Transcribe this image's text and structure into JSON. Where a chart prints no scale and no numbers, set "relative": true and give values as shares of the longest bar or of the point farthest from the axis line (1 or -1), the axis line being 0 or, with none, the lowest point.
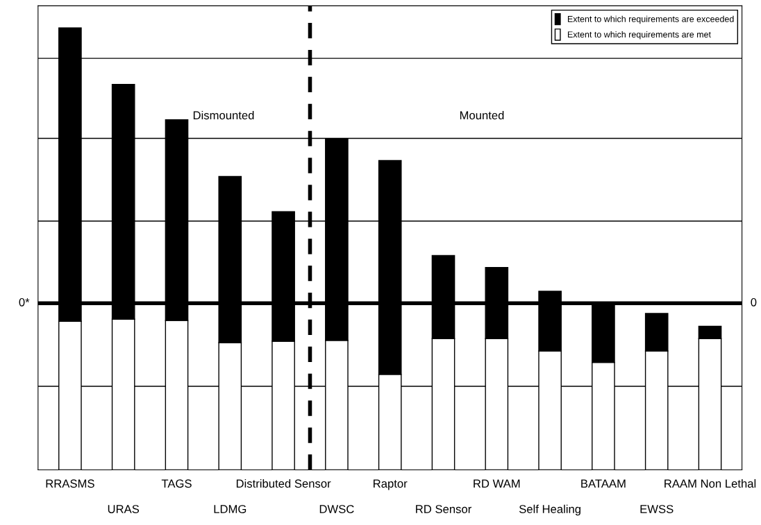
{
  "chart_data": {
    "type": "bar",
    "relative": true,
    "stacked": true,
    "categories": [
      "RRASMS",
      "URAS",
      "TAGS",
      "LDMG",
      "Distributed Sensor",
      "DWSC",
      "Raptor",
      "RD Sensor",
      "RD WAM",
      "Self Healing",
      "BATAAM",
      "EWSS",
      "RAAM Non Lethal"
    ],
    "series": [
      {
        "name": "Extent to which requirements are met",
        "color": "#ffffff",
        "values": [
          0.336,
          0.341,
          0.338,
          0.288,
          0.291,
          0.293,
          0.216,
          0.297,
          0.297,
          0.269,
          0.243,
          0.269,
          0.297
        ]
      },
      {
        "name": "Extent to which requirements are exceeded",
        "color": "#000000",
        "values": [
          0.664,
          0.531,
          0.454,
          0.376,
          0.293,
          0.455,
          0.484,
          0.188,
          0.161,
          0.135,
          0.135,
          0.085,
          0.028
        ]
      }
    ],
    "ref_lines": [
      {
        "axis": "y",
        "value": 0.931,
        "color": "#000000",
        "line_style": "solid"
      },
      {
        "axis": "y",
        "value": 0.75,
        "color": "#000000",
        "line_style": "solid"
      },
      {
        "axis": "y",
        "value": 0.563,
        "color": "#000000",
        "line_style": "solid"
      },
      {
        "axis": "y",
        "value": 0.189,
        "color": "#000000",
        "line_style": "solid"
      },
      {
        "axis": "y",
        "value": 0.377,
        "label": "0*",
        "color": "#000000",
        "line_style": "solid"
      }
    ],
    "annotations": [
      "Dismounted",
      "Mounted",
      "0"
    ],
    "legend": "top right"
  }
}
